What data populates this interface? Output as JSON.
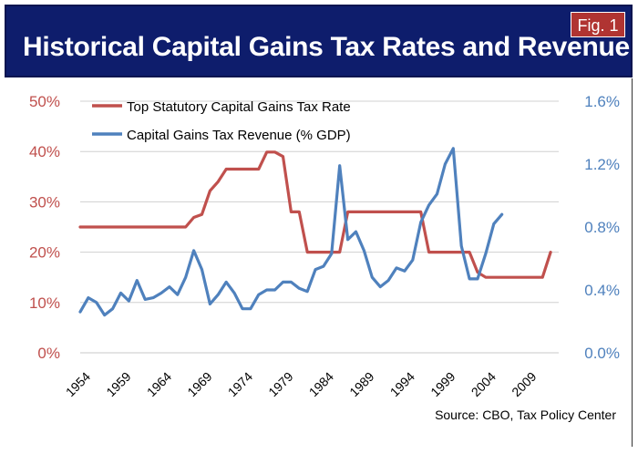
{
  "title": "Historical Capital Gains Tax Rates and Revenue",
  "figure_label": "Fig. 1",
  "source": "Source:  CBO, Tax Policy Center",
  "colors": {
    "banner": "#0e1d6c",
    "badge": "#b03432",
    "rate_series": "#c0504d",
    "revenue_series": "#4f81bd"
  },
  "chart_data": {
    "type": "line",
    "x_tick_labels": [
      "1954",
      "1959",
      "1964",
      "1969",
      "1974",
      "1979",
      "1984",
      "1989",
      "1994",
      "1999",
      "2004",
      "2009"
    ],
    "x_ticks": [
      1954,
      1959,
      1964,
      1969,
      1974,
      1979,
      1984,
      1989,
      1994,
      1999,
      2004,
      2009
    ],
    "xlim": [
      1954,
      2013
    ],
    "y_left": {
      "label": "",
      "range": [
        0,
        50
      ],
      "ticks": [
        0,
        10,
        20,
        30,
        40,
        50
      ],
      "tick_labels": [
        "0%",
        "10%",
        "20%",
        "30%",
        "40%",
        "50%"
      ]
    },
    "y_right": {
      "label": "",
      "range": [
        0.0,
        1.6
      ],
      "ticks": [
        0.0,
        0.4,
        0.8,
        1.2,
        1.6
      ],
      "tick_labels": [
        "0.0%",
        "0.4%",
        "0.8%",
        "1.2%",
        "1.6%"
      ]
    },
    "legend": [
      "Top Statutory Capital Gains Tax Rate",
      "Capital Gains Tax Revenue (% GDP)"
    ],
    "series": [
      {
        "name": "Top Statutory Capital Gains Tax Rate",
        "axis": "left",
        "color": "#c0504d",
        "x": [
          1954,
          1955,
          1956,
          1957,
          1958,
          1959,
          1960,
          1961,
          1962,
          1963,
          1964,
          1965,
          1966,
          1967,
          1968,
          1969,
          1970,
          1971,
          1972,
          1973,
          1974,
          1975,
          1976,
          1977,
          1978,
          1979,
          1980,
          1981,
          1982,
          1983,
          1984,
          1985,
          1986,
          1987,
          1988,
          1989,
          1990,
          1991,
          1992,
          1993,
          1994,
          1995,
          1996,
          1997,
          1998,
          1999,
          2000,
          2001,
          2002,
          2003,
          2004,
          2005,
          2006,
          2007,
          2008,
          2009,
          2010,
          2011,
          2012
        ],
        "values": [
          25,
          25,
          25,
          25,
          25,
          25,
          25,
          25,
          25,
          25,
          25,
          25,
          25,
          25,
          26.9,
          27.5,
          32.2,
          34,
          36.5,
          36.5,
          36.5,
          36.5,
          36.5,
          39.9,
          39.9,
          39,
          28,
          28,
          20,
          20,
          20,
          20,
          20,
          28,
          28,
          28,
          28,
          28,
          28,
          28,
          28,
          28,
          28,
          20,
          20,
          20,
          20,
          20,
          20,
          16,
          15,
          15,
          15,
          15,
          15,
          15,
          15,
          15,
          20
        ]
      },
      {
        "name": "Capital Gains Tax Revenue (% GDP)",
        "axis": "right",
        "color": "#4f81bd",
        "x": [
          1954,
          1955,
          1956,
          1957,
          1958,
          1959,
          1960,
          1961,
          1962,
          1963,
          1964,
          1965,
          1966,
          1967,
          1968,
          1969,
          1970,
          1971,
          1972,
          1973,
          1974,
          1975,
          1976,
          1977,
          1978,
          1979,
          1980,
          1981,
          1982,
          1983,
          1984,
          1985,
          1986,
          1987,
          1988,
          1989,
          1990,
          1991,
          1992,
          1993,
          1994,
          1995,
          1996,
          1997,
          1998,
          1999,
          2000,
          2001,
          2002,
          2003,
          2004,
          2005,
          2006
        ],
        "values": [
          0.26,
          0.35,
          0.32,
          0.24,
          0.28,
          0.38,
          0.33,
          0.46,
          0.34,
          0.35,
          0.38,
          0.42,
          0.37,
          0.48,
          0.65,
          0.53,
          0.31,
          0.37,
          0.45,
          0.38,
          0.28,
          0.28,
          0.37,
          0.4,
          0.4,
          0.45,
          0.45,
          0.41,
          0.39,
          0.53,
          0.55,
          0.63,
          1.19,
          0.72,
          0.77,
          0.65,
          0.48,
          0.42,
          0.46,
          0.54,
          0.52,
          0.59,
          0.83,
          0.94,
          1.01,
          1.2,
          1.3,
          0.68,
          0.47,
          0.47,
          0.63,
          0.82,
          0.88
        ]
      }
    ]
  }
}
